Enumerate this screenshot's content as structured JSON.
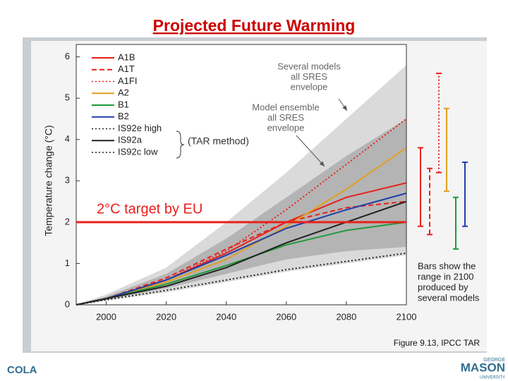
{
  "chart_data": {
    "type": "line",
    "title": "Projected Future Warming",
    "ylabel": "Temperature change (°C)",
    "x": [
      1990,
      2000,
      2020,
      2040,
      2060,
      2080,
      2100
    ],
    "xlim": [
      1990,
      2100
    ],
    "xticks": [
      2000,
      2020,
      2040,
      2060,
      2080,
      2100
    ],
    "ylim": [
      0,
      6.3
    ],
    "yticks": [
      0,
      1,
      2,
      3,
      4,
      5,
      6
    ],
    "series": [
      {
        "name": "A1B",
        "color": "#e8201c",
        "dash": "solid",
        "values": [
          0,
          0.15,
          0.6,
          1.25,
          2.0,
          2.6,
          2.95
        ]
      },
      {
        "name": "A1T",
        "color": "#e8201c",
        "dash": "dashed",
        "values": [
          0,
          0.15,
          0.65,
          1.35,
          2.0,
          2.35,
          2.5
        ]
      },
      {
        "name": "A1FI",
        "color": "#e8201c",
        "dash": "dotted",
        "values": [
          0,
          0.15,
          0.6,
          1.3,
          2.3,
          3.4,
          4.5
        ]
      },
      {
        "name": "A2",
        "color": "#e0a020",
        "dash": "solid",
        "values": [
          0,
          0.15,
          0.55,
          1.1,
          1.9,
          2.8,
          3.8
        ]
      },
      {
        "name": "B1",
        "color": "#1f9a3a",
        "dash": "solid",
        "values": [
          0,
          0.15,
          0.5,
          0.95,
          1.45,
          1.8,
          2.0
        ]
      },
      {
        "name": "B2",
        "color": "#1f3fa8",
        "dash": "solid",
        "values": [
          0,
          0.15,
          0.6,
          1.2,
          1.85,
          2.3,
          2.7
        ]
      },
      {
        "name": "IS92e high",
        "color": "#222222",
        "dash": "dotted",
        "values": [
          null,
          null,
          null,
          null,
          null,
          null,
          null
        ]
      },
      {
        "name": "IS92a",
        "color": "#222222",
        "dash": "solid",
        "values": [
          0,
          0.15,
          0.45,
          0.9,
          1.5,
          2.0,
          2.5
        ]
      },
      {
        "name": "IS92c low",
        "color": "#222222",
        "dash": "dotted",
        "values": [
          0,
          0.12,
          0.35,
          0.6,
          0.85,
          1.05,
          1.25
        ]
      }
    ],
    "envelopes": [
      {
        "label": [
          "Several models",
          "all SRES",
          "envelope"
        ],
        "color": "#dadada",
        "lower": [
          0,
          0.1,
          0.3,
          0.55,
          0.8,
          1.0,
          1.2
        ],
        "upper": [
          0,
          0.25,
          0.9,
          2.0,
          3.2,
          4.5,
          5.8
        ]
      },
      {
        "label": [
          "Model ensemble",
          "all SRES",
          "envelope"
        ],
        "color": "#b4b4b4",
        "lower": [
          0,
          0.12,
          0.4,
          0.75,
          1.1,
          1.3,
          1.4
        ],
        "upper": [
          0,
          0.2,
          0.75,
          1.6,
          2.6,
          3.6,
          4.5
        ]
      }
    ],
    "bracket_label": "(TAR method)",
    "reference_line": {
      "value": 2,
      "label": "2°C target by EU",
      "color": "#e8201c"
    },
    "range_bars": [
      {
        "color": "#e8201c",
        "dash": "solid",
        "low": 1.9,
        "high": 3.8
      },
      {
        "color": "#e8201c",
        "dash": "dashed",
        "low": 1.7,
        "high": 3.3
      },
      {
        "color": "#e8201c",
        "dash": "dotted",
        "low": 3.2,
        "high": 5.6
      },
      {
        "color": "#e0a020",
        "dash": "solid",
        "low": 2.75,
        "high": 4.75
      },
      {
        "color": "#1f9a3a",
        "dash": "solid",
        "low": 1.35,
        "high": 2.6
      },
      {
        "color": "#1f3fa8",
        "dash": "solid",
        "low": 1.9,
        "high": 3.45
      }
    ],
    "range_note": [
      "Bars show the",
      "range in 2100",
      "produced by",
      "several models"
    ],
    "caption": "Figure 9.13, IPCC TAR"
  },
  "slide": {
    "logo_left": "COLA",
    "logo_right": {
      "top": "GEORGE",
      "main": "MASON",
      "bottom": "UNIVERSITY"
    }
  }
}
